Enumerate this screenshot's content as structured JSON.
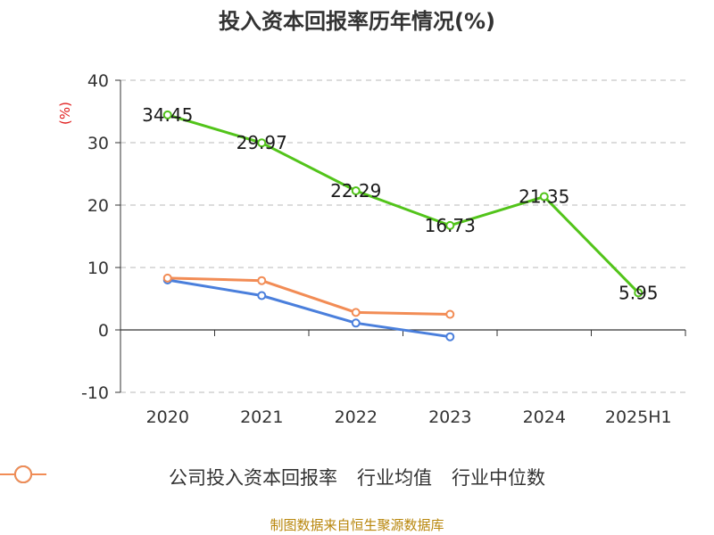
{
  "chart_data": {
    "type": "line",
    "title": "投入资本回报率历年情况(%)",
    "ylabel": "(%)",
    "categories": [
      "2020",
      "2021",
      "2022",
      "2023",
      "2024",
      "2025H1"
    ],
    "ylim": [
      -10,
      40
    ],
    "yticks": [
      -10,
      0,
      10,
      20,
      30,
      40
    ],
    "grid": true,
    "legend_position": "bottom",
    "series": [
      {
        "name": "公司投入资本回报率",
        "color": "#52c41a",
        "values": [
          34.45,
          29.97,
          22.29,
          16.73,
          21.35,
          5.95
        ],
        "show_labels": true
      },
      {
        "name": "行业均值",
        "color": "#4a7fdc",
        "values": [
          8.0,
          5.5,
          1.1,
          -1.1,
          null,
          null
        ],
        "show_labels": false
      },
      {
        "name": "行业中位数",
        "color": "#f28c55",
        "values": [
          8.3,
          7.9,
          2.8,
          2.5,
          null,
          null
        ],
        "show_labels": false
      }
    ]
  },
  "footer": {
    "source": "制图数据来自恒生聚源数据库"
  }
}
